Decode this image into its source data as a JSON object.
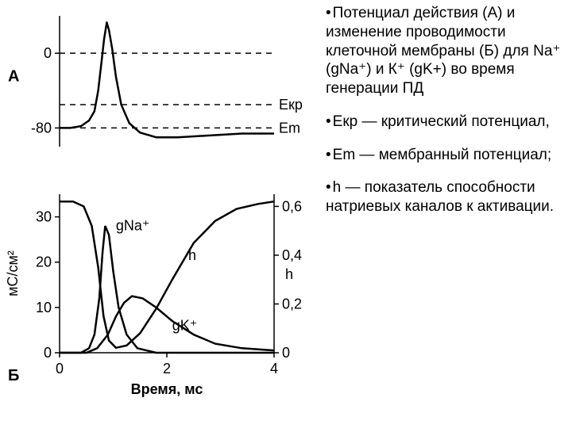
{
  "caption": {
    "p1": "Потенциал действия (А) и изменение проводимости клеточной мембраны (Б) для Na⁺ (gNa⁺) и К⁺ (gK+) во время генерации ПД",
    "p2": "Екр — критический потенциал,",
    "p3": "Em — мембранный потенциал;",
    "p4": "h — показатель способности натриевых каналов к активации."
  },
  "figure": {
    "stroke": "#000000",
    "lineWidth": 2.5,
    "thinLine": 1.5,
    "font": "Arial",
    "axisFontSize": 18,
    "labelFontSize": 18,
    "chartA": {
      "panelLabel": "А",
      "yTicks": [
        0,
        -80
      ],
      "refLines": {
        "zero": 0,
        "Ekr": -55,
        "Em": -80,
        "EkrLabel": "Eкр",
        "EmLabel": "Em"
      },
      "action_potential_xy": [
        [
          0.0,
          -80
        ],
        [
          0.2,
          -80
        ],
        [
          0.4,
          -78
        ],
        [
          0.55,
          -72
        ],
        [
          0.65,
          -62
        ],
        [
          0.72,
          -40
        ],
        [
          0.78,
          -10
        ],
        [
          0.83,
          15
        ],
        [
          0.88,
          33
        ],
        [
          0.92,
          25
        ],
        [
          0.98,
          5
        ],
        [
          1.05,
          -25
        ],
        [
          1.15,
          -55
        ],
        [
          1.3,
          -75
        ],
        [
          1.5,
          -85
        ],
        [
          1.8,
          -90
        ],
        [
          2.2,
          -90
        ],
        [
          2.8,
          -88
        ],
        [
          3.4,
          -86
        ],
        [
          4.0,
          -86
        ]
      ]
    },
    "chartB": {
      "panelLabel": "Б",
      "xLabel": "Время, мс",
      "yLeftLabel": "мС/см²",
      "xTicks": [
        0,
        2,
        4
      ],
      "yLeftTicks": [
        0,
        10,
        20,
        30
      ],
      "yRightTicks": [
        0,
        0.2,
        0.4,
        0.6
      ],
      "yRightTickLabels": [
        "0",
        "0,2",
        "0,4",
        "0,6"
      ],
      "yRightAxisName": "h",
      "gNa_xy": [
        [
          0.0,
          0
        ],
        [
          0.4,
          0
        ],
        [
          0.55,
          1
        ],
        [
          0.65,
          4
        ],
        [
          0.74,
          12
        ],
        [
          0.8,
          22
        ],
        [
          0.85,
          28
        ],
        [
          0.92,
          26
        ],
        [
          1.0,
          18
        ],
        [
          1.1,
          10
        ],
        [
          1.25,
          4
        ],
        [
          1.45,
          1
        ],
        [
          1.8,
          0
        ],
        [
          4.0,
          0
        ]
      ],
      "gK_xy": [
        [
          0.0,
          0
        ],
        [
          0.5,
          0
        ],
        [
          0.7,
          1
        ],
        [
          0.9,
          4
        ],
        [
          1.05,
          8
        ],
        [
          1.2,
          11
        ],
        [
          1.35,
          12.5
        ],
        [
          1.55,
          12
        ],
        [
          1.8,
          10
        ],
        [
          2.1,
          7
        ],
        [
          2.5,
          4
        ],
        [
          2.9,
          2
        ],
        [
          3.4,
          1
        ],
        [
          4.0,
          0.5
        ]
      ],
      "h_xy_right": [
        [
          0.0,
          0.62
        ],
        [
          0.25,
          0.62
        ],
        [
          0.45,
          0.6
        ],
        [
          0.6,
          0.52
        ],
        [
          0.72,
          0.35
        ],
        [
          0.82,
          0.15
        ],
        [
          0.92,
          0.05
        ],
        [
          1.05,
          0.02
        ],
        [
          1.25,
          0.03
        ],
        [
          1.5,
          0.08
        ],
        [
          1.8,
          0.18
        ],
        [
          2.1,
          0.3
        ],
        [
          2.5,
          0.45
        ],
        [
          2.9,
          0.54
        ],
        [
          3.3,
          0.59
        ],
        [
          3.7,
          0.61
        ],
        [
          4.0,
          0.62
        ]
      ],
      "curveLabels": {
        "gNa": "gNa⁺",
        "gK": "gK⁺",
        "h": "h"
      }
    }
  }
}
